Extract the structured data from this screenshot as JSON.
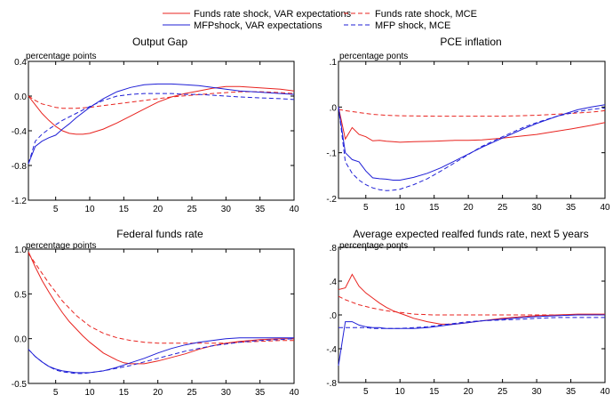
{
  "legend": {
    "placement": "top-center",
    "entries": [
      {
        "label": "Funds rate shock, VAR expectations",
        "color": "#e8231f",
        "dash": "solid"
      },
      {
        "label": "Funds rate shock, MCE",
        "color": "#e8231f",
        "dash": "dashed"
      },
      {
        "label": "MFPshock, VAR expectations",
        "color": "#1f1fd6",
        "dash": "solid"
      },
      {
        "label": "MFP shock, MCE",
        "color": "#1f1fd6",
        "dash": "dashed"
      }
    ]
  },
  "chart_data": [
    {
      "type": "line",
      "title": "Output Gap",
      "unit_label": "percentage points",
      "xlim": [
        1,
        40
      ],
      "ylim": [
        -1.2,
        0.4
      ],
      "xticks": [
        5,
        10,
        15,
        20,
        25,
        30,
        35,
        40
      ],
      "xtick_labels": [
        "5",
        "10",
        "15",
        "20",
        "25",
        "30",
        "35",
        "40"
      ],
      "yticks": [
        -1.2,
        -0.8,
        -0.4,
        0.0,
        0.4
      ],
      "ytick_labels": [
        "-1.2",
        "-0.8",
        "-0.4",
        "0.0",
        "0.4"
      ],
      "series": [
        {
          "legend_index": 0,
          "color": "#e8231f",
          "dash": "solid",
          "x": [
            1,
            2,
            3,
            4,
            5,
            6,
            7,
            8,
            9,
            10,
            12,
            14,
            16,
            18,
            20,
            22,
            24,
            26,
            28,
            30,
            32,
            34,
            36,
            38,
            40
          ],
          "y": [
            0.0,
            -0.1,
            -0.2,
            -0.28,
            -0.35,
            -0.4,
            -0.43,
            -0.44,
            -0.44,
            -0.43,
            -0.38,
            -0.31,
            -0.23,
            -0.15,
            -0.07,
            -0.01,
            0.03,
            0.06,
            0.09,
            0.11,
            0.11,
            0.1,
            0.09,
            0.08,
            0.06
          ]
        },
        {
          "legend_index": 1,
          "color": "#e8231f",
          "dash": "dashed",
          "x": [
            1,
            2,
            3,
            4,
            5,
            6,
            7,
            8,
            10,
            12,
            15,
            18,
            20,
            22,
            25,
            28,
            30,
            32,
            35,
            38,
            40
          ],
          "y": [
            0.0,
            -0.05,
            -0.09,
            -0.11,
            -0.13,
            -0.14,
            -0.14,
            -0.14,
            -0.13,
            -0.11,
            -0.08,
            -0.05,
            -0.03,
            -0.01,
            0.01,
            0.03,
            0.04,
            0.05,
            0.05,
            0.04,
            0.03
          ]
        },
        {
          "legend_index": 2,
          "color": "#1f1fd6",
          "dash": "solid",
          "x": [
            1,
            2,
            3,
            4,
            5,
            6,
            7,
            8,
            10,
            12,
            14,
            16,
            18,
            20,
            22,
            24,
            26,
            28,
            30,
            32,
            34,
            36,
            38,
            40
          ],
          "y": [
            -0.78,
            -0.58,
            -0.52,
            -0.48,
            -0.45,
            -0.38,
            -0.32,
            -0.25,
            -0.13,
            -0.03,
            0.05,
            0.1,
            0.13,
            0.14,
            0.14,
            0.13,
            0.12,
            0.1,
            0.08,
            0.06,
            0.05,
            0.04,
            0.03,
            0.02
          ]
        },
        {
          "legend_index": 3,
          "color": "#1f1fd6",
          "dash": "dashed",
          "x": [
            1,
            2,
            3,
            4,
            5,
            6,
            8,
            10,
            12,
            14,
            16,
            18,
            20,
            22,
            24,
            26,
            28,
            30,
            32,
            35,
            38,
            40
          ],
          "y": [
            -0.78,
            -0.52,
            -0.44,
            -0.38,
            -0.33,
            -0.28,
            -0.2,
            -0.12,
            -0.05,
            0.0,
            0.02,
            0.03,
            0.03,
            0.03,
            0.02,
            0.02,
            0.01,
            0.0,
            -0.01,
            -0.02,
            -0.03,
            -0.04
          ]
        }
      ]
    },
    {
      "type": "line",
      "title": "PCE inflation",
      "unit_label": "percentage ponts",
      "xlim": [
        1,
        40
      ],
      "ylim": [
        -0.2,
        0.1
      ],
      "xticks": [
        5,
        10,
        15,
        20,
        25,
        30,
        35,
        40
      ],
      "xtick_labels": [
        "5",
        "10",
        "15",
        "20",
        "25",
        "30",
        "35",
        "40"
      ],
      "yticks": [
        -0.2,
        -0.1,
        0.0,
        0.1
      ],
      "ytick_labels": [
        "-.2",
        "-.1",
        ".0",
        ".1"
      ],
      "series": [
        {
          "legend_index": 0,
          "color": "#e8231f",
          "dash": "solid",
          "x": [
            1,
            2,
            3,
            4,
            5,
            6,
            7,
            8,
            9,
            10,
            12,
            15,
            18,
            20,
            22,
            25,
            28,
            30,
            32,
            35,
            38,
            40
          ],
          "y": [
            0.0,
            -0.07,
            -0.045,
            -0.06,
            -0.065,
            -0.074,
            -0.073,
            -0.075,
            -0.076,
            -0.077,
            -0.076,
            -0.075,
            -0.073,
            -0.073,
            -0.072,
            -0.068,
            -0.063,
            -0.06,
            -0.055,
            -0.048,
            -0.04,
            -0.034
          ]
        },
        {
          "legend_index": 1,
          "color": "#e8231f",
          "dash": "dashed",
          "x": [
            1,
            2,
            4,
            6,
            8,
            10,
            15,
            20,
            25,
            30,
            35,
            38,
            40
          ],
          "y": [
            -0.005,
            -0.008,
            -0.012,
            -0.016,
            -0.018,
            -0.019,
            -0.02,
            -0.02,
            -0.02,
            -0.018,
            -0.014,
            -0.011,
            -0.008
          ]
        },
        {
          "legend_index": 2,
          "color": "#1f1fd6",
          "dash": "solid",
          "x": [
            1,
            2,
            3,
            4,
            5,
            6,
            7,
            8,
            9,
            10,
            12,
            14,
            16,
            18,
            20,
            22,
            25,
            28,
            30,
            33,
            36,
            38,
            40
          ],
          "y": [
            0.0,
            -0.1,
            -0.115,
            -0.12,
            -0.14,
            -0.155,
            -0.157,
            -0.158,
            -0.16,
            -0.16,
            -0.154,
            -0.145,
            -0.133,
            -0.118,
            -0.103,
            -0.088,
            -0.068,
            -0.048,
            -0.036,
            -0.02,
            -0.006,
            0.0,
            0.005
          ]
        },
        {
          "legend_index": 3,
          "color": "#1f1fd6",
          "dash": "dashed",
          "x": [
            1,
            2,
            3,
            4,
            5,
            6,
            7,
            8,
            9,
            10,
            12,
            14,
            16,
            18,
            20,
            22,
            25,
            28,
            30,
            33,
            36,
            38,
            40
          ],
          "y": [
            0.0,
            -0.12,
            -0.145,
            -0.16,
            -0.17,
            -0.177,
            -0.181,
            -0.183,
            -0.182,
            -0.18,
            -0.17,
            -0.157,
            -0.14,
            -0.122,
            -0.104,
            -0.086,
            -0.065,
            -0.045,
            -0.034,
            -0.02,
            -0.01,
            -0.005,
            -0.002
          ]
        }
      ]
    },
    {
      "type": "line",
      "title": "Federal funds rate",
      "unit_label": "percentage points",
      "xlim": [
        1,
        40
      ],
      "ylim": [
        -0.5,
        1.0
      ],
      "xticks": [
        5,
        10,
        15,
        20,
        25,
        30,
        35,
        40
      ],
      "xtick_labels": [
        "5",
        "10",
        "15",
        "20",
        "25",
        "30",
        "35",
        "40"
      ],
      "yticks": [
        -0.5,
        0.0,
        0.5,
        1.0
      ],
      "ytick_labels": [
        "-0.5",
        "0.0",
        "0.5",
        "1.0"
      ],
      "series": [
        {
          "legend_index": 0,
          "color": "#e8231f",
          "dash": "solid",
          "x": [
            1,
            2,
            3,
            4,
            5,
            6,
            7,
            8,
            9,
            10,
            11,
            12,
            13,
            14,
            15,
            16,
            18,
            20,
            22,
            24,
            26,
            28,
            30,
            32,
            35,
            38,
            40
          ],
          "y": [
            0.97,
            0.8,
            0.65,
            0.52,
            0.4,
            0.29,
            0.19,
            0.11,
            0.03,
            -0.04,
            -0.1,
            -0.16,
            -0.2,
            -0.24,
            -0.27,
            -0.28,
            -0.28,
            -0.25,
            -0.21,
            -0.17,
            -0.12,
            -0.08,
            -0.05,
            -0.03,
            -0.01,
            0.0,
            0.0
          ]
        },
        {
          "legend_index": 1,
          "color": "#e8231f",
          "dash": "dashed",
          "x": [
            1,
            2,
            3,
            4,
            5,
            6,
            7,
            8,
            9,
            10,
            12,
            14,
            16,
            18,
            20,
            22,
            24,
            26,
            28,
            30,
            32,
            35,
            38,
            40
          ],
          "y": [
            0.95,
            0.84,
            0.73,
            0.62,
            0.52,
            0.42,
            0.34,
            0.26,
            0.2,
            0.14,
            0.06,
            0.01,
            -0.02,
            -0.04,
            -0.05,
            -0.05,
            -0.05,
            -0.05,
            -0.05,
            -0.05,
            -0.04,
            -0.03,
            -0.02,
            -0.02
          ]
        },
        {
          "legend_index": 2,
          "color": "#1f1fd6",
          "dash": "solid",
          "x": [
            1,
            2,
            3,
            4,
            5,
            6,
            7,
            8,
            9,
            10,
            12,
            14,
            16,
            18,
            20,
            22,
            24,
            26,
            28,
            30,
            32,
            35,
            38,
            40
          ],
          "y": [
            -0.12,
            -0.2,
            -0.26,
            -0.31,
            -0.34,
            -0.36,
            -0.37,
            -0.38,
            -0.38,
            -0.38,
            -0.36,
            -0.32,
            -0.27,
            -0.22,
            -0.16,
            -0.11,
            -0.07,
            -0.04,
            -0.02,
            0.0,
            0.01,
            0.01,
            0.01,
            0.01
          ]
        },
        {
          "legend_index": 3,
          "color": "#1f1fd6",
          "dash": "dashed",
          "x": [
            1,
            2,
            3,
            4,
            5,
            6,
            7,
            8,
            9,
            10,
            12,
            14,
            16,
            18,
            20,
            22,
            24,
            26,
            28,
            30,
            32,
            35,
            38,
            40
          ],
          "y": [
            -0.12,
            -0.2,
            -0.26,
            -0.31,
            -0.35,
            -0.37,
            -0.38,
            -0.39,
            -0.39,
            -0.38,
            -0.36,
            -0.33,
            -0.3,
            -0.26,
            -0.22,
            -0.18,
            -0.14,
            -0.11,
            -0.08,
            -0.06,
            -0.04,
            -0.02,
            -0.01,
            0.0
          ]
        }
      ]
    },
    {
      "type": "line",
      "title": "Average expected realfed funds rate, next 5 years",
      "unit_label": "percentage ponts",
      "xlim": [
        1,
        40
      ],
      "ylim": [
        -0.8,
        0.8
      ],
      "xticks": [
        5,
        10,
        15,
        20,
        25,
        30,
        35,
        40
      ],
      "xtick_labels": [
        "5",
        "10",
        "15",
        "20",
        "25",
        "30",
        "35",
        "40"
      ],
      "yticks": [
        -0.8,
        -0.4,
        0.0,
        0.4,
        0.8
      ],
      "ytick_labels": [
        "-.8",
        "-.4",
        ".0",
        ".4",
        ".8"
      ],
      "series": [
        {
          "legend_index": 0,
          "color": "#e8231f",
          "dash": "solid",
          "x": [
            1,
            2,
            3,
            4,
            5,
            6,
            7,
            8,
            9,
            10,
            11,
            12,
            14,
            16,
            18,
            20,
            22,
            25,
            28,
            30,
            33,
            36,
            40
          ],
          "y": [
            0.3,
            0.32,
            0.48,
            0.34,
            0.26,
            0.2,
            0.14,
            0.09,
            0.05,
            0.02,
            -0.01,
            -0.04,
            -0.08,
            -0.11,
            -0.11,
            -0.09,
            -0.07,
            -0.04,
            -0.02,
            -0.01,
            0.0,
            0.01,
            0.01
          ]
        },
        {
          "legend_index": 1,
          "color": "#e8231f",
          "dash": "dashed",
          "x": [
            1,
            2,
            3,
            4,
            5,
            6,
            8,
            10,
            12,
            15,
            20,
            25,
            30,
            35,
            40
          ],
          "y": [
            0.22,
            0.18,
            0.15,
            0.12,
            0.1,
            0.08,
            0.05,
            0.03,
            0.01,
            0.0,
            0.0,
            0.0,
            0.0,
            0.0,
            0.0
          ]
        },
        {
          "legend_index": 2,
          "color": "#1f1fd6",
          "dash": "solid",
          "x": [
            1,
            2,
            3,
            4,
            5,
            6,
            7,
            8,
            10,
            12,
            14,
            16,
            18,
            20,
            22,
            25,
            28,
            30,
            33,
            36,
            40
          ],
          "y": [
            -0.6,
            -0.08,
            -0.08,
            -0.12,
            -0.14,
            -0.15,
            -0.15,
            -0.16,
            -0.16,
            -0.16,
            -0.15,
            -0.13,
            -0.11,
            -0.09,
            -0.07,
            -0.05,
            -0.03,
            -0.02,
            -0.01,
            0.0,
            0.0
          ]
        },
        {
          "legend_index": 3,
          "color": "#1f1fd6",
          "dash": "dashed",
          "x": [
            1,
            2,
            3,
            4,
            5,
            6,
            8,
            10,
            12,
            14,
            16,
            18,
            20,
            22,
            25,
            28,
            30,
            33,
            36,
            40
          ],
          "y": [
            -0.15,
            -0.15,
            -0.15,
            -0.15,
            -0.15,
            -0.16,
            -0.16,
            -0.16,
            -0.15,
            -0.14,
            -0.12,
            -0.1,
            -0.08,
            -0.07,
            -0.06,
            -0.05,
            -0.04,
            -0.03,
            -0.03,
            -0.03
          ]
        }
      ]
    }
  ]
}
